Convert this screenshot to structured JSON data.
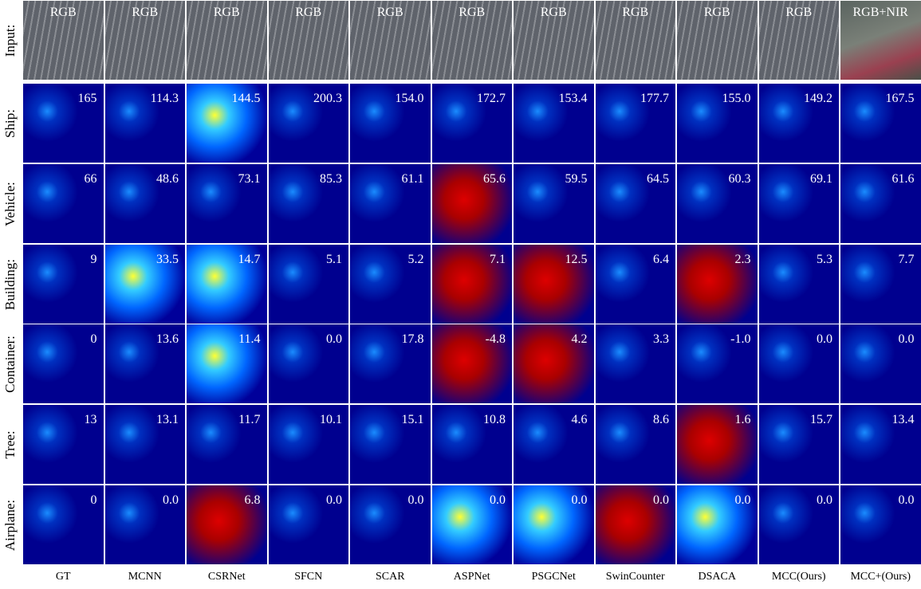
{
  "rows": [
    {
      "label": "Input:",
      "cells": [
        "RGB",
        "RGB",
        "RGB",
        "RGB",
        "RGB",
        "RGB",
        "RGB",
        "RGB",
        "RGB",
        "RGB",
        "RGB+NIR"
      ]
    },
    {
      "label": "Ship:",
      "cells": [
        "165",
        "114.3",
        "144.5",
        "200.3",
        "154.0",
        "172.7",
        "153.4",
        "177.7",
        "155.0",
        "149.2",
        "167.5"
      ]
    },
    {
      "label": "Vehicle:",
      "cells": [
        "66",
        "48.6",
        "73.1",
        "85.3",
        "61.1",
        "65.6",
        "59.5",
        "64.5",
        "60.3",
        "69.1",
        "61.6"
      ]
    },
    {
      "label": "Building:",
      "cells": [
        "9",
        "33.5",
        "14.7",
        "5.1",
        "5.2",
        "7.1",
        "12.5",
        "6.4",
        "2.3",
        "5.3",
        "7.7"
      ]
    },
    {
      "label": "Container:",
      "cells": [
        "0",
        "13.6",
        "11.4",
        "0.0",
        "17.8",
        "-4.8",
        "4.2",
        "3.3",
        "-1.0",
        "0.0",
        "0.0"
      ]
    },
    {
      "label": "Tree:",
      "cells": [
        "13",
        "13.1",
        "11.7",
        "10.1",
        "15.1",
        "10.8",
        "4.6",
        "8.6",
        "1.6",
        "15.7",
        "13.4"
      ]
    },
    {
      "label": "Airplane:",
      "cells": [
        "0",
        "0.0",
        "6.8",
        "0.0",
        "0.0",
        "0.0",
        "0.0",
        "0.0",
        "0.0",
        "0.0",
        "0.0"
      ]
    }
  ],
  "columns": [
    "GT",
    "MCNN",
    "CSRNet",
    "SFCN",
    "SCAR",
    "ASPNet",
    "PSGCNet",
    "SwinCounter",
    "DSACA",
    "MCC(Ours)",
    "MCC+(Ours)"
  ]
}
